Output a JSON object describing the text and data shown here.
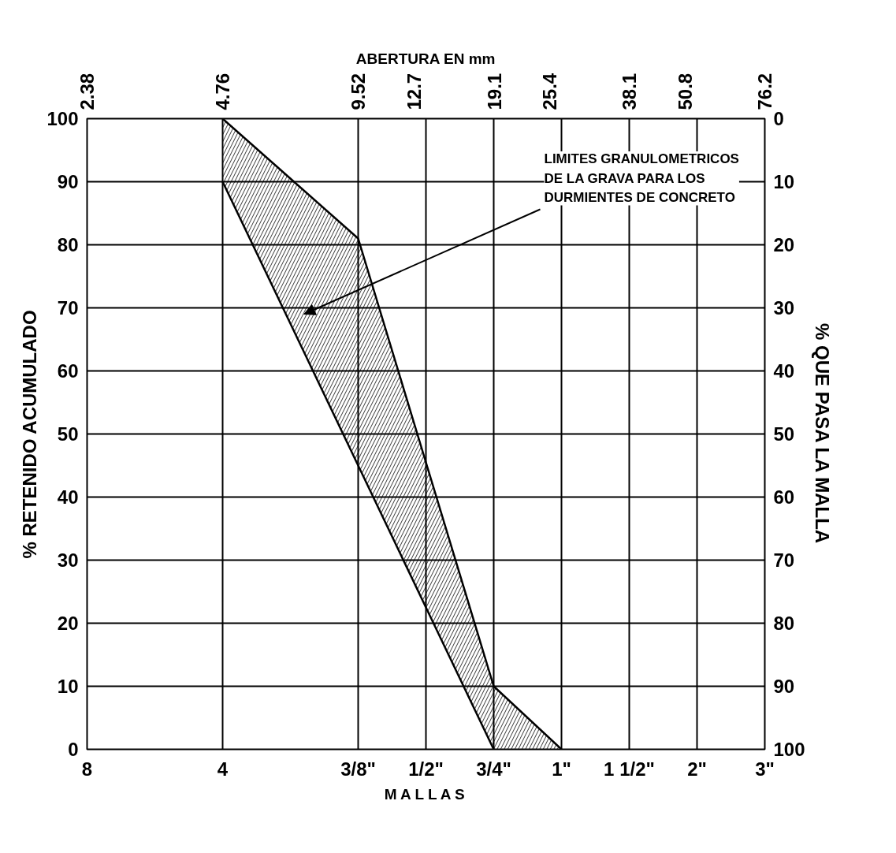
{
  "chart_data": {
    "type": "line",
    "xlabel": "M A L L A S",
    "x2label": "ABERTURA EN mm",
    "ylabel": "% RETENIDO ACUMULADO",
    "y2label": "% QUE PASA LA MALLA",
    "categories": [
      "8",
      null,
      "4",
      null,
      "3/8\"",
      "1/2\"",
      "3/4\"",
      "1\"",
      "1 1/2\"",
      "2\"",
      "3\""
    ],
    "log": "x2",
    "x2lim": [
      2.38,
      76.2
    ],
    "x2ticks": [
      2.38,
      4.76,
      9.52,
      12.7,
      19.1,
      25.4,
      38.1,
      50.8,
      76.2
    ],
    "ylim": [
      0,
      100
    ],
    "yticks": [
      0,
      10,
      20,
      30,
      40,
      50,
      60,
      70,
      80,
      90,
      100
    ],
    "y2lim": [
      100,
      0
    ],
    "y2ticks": [
      0,
      10,
      20,
      30,
      40,
      50,
      60,
      70,
      80,
      90,
      100
    ],
    "grid": true,
    "line_style": "solid",
    "marker": "none",
    "series": [
      {
        "color": "#000000",
        "values": [
          null,
          null,
          100,
          90.5,
          81,
          45.5,
          10,
          0,
          null,
          null,
          null
        ],
        "lower": [
          null,
          null,
          90,
          67.5,
          45,
          22.5,
          0,
          0,
          null,
          null,
          null
        ],
        "upper": [
          null,
          null,
          100,
          90.5,
          81,
          45.5,
          10,
          0,
          null,
          null,
          null
        ]
      },
      {
        "color": "#000000",
        "values": [
          null,
          null,
          90,
          67.5,
          45,
          22.5,
          0,
          null,
          null,
          null,
          null
        ]
      }
    ],
    "annotations": [
      "LIMITES GRANULOMETRICOS\nDE LA GRAVA PARA LOS\nDURMIENTES DE CONCRETO"
    ]
  }
}
